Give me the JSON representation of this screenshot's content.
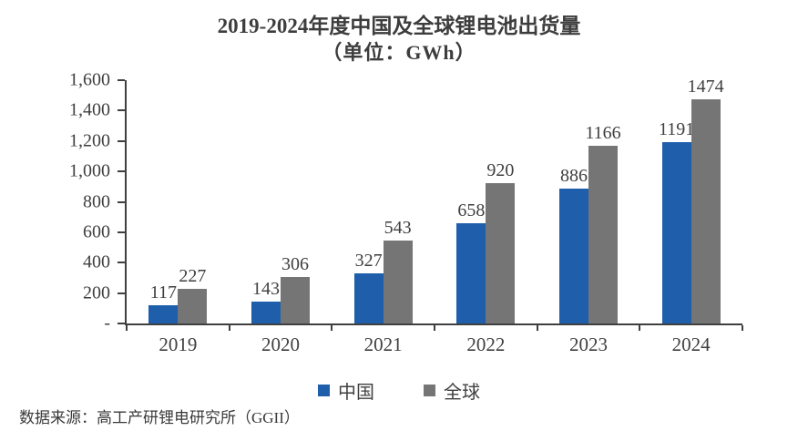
{
  "title": {
    "line1": "2019-2024年度中国及全球锂电池出货量",
    "line2": "（单位：GWh）"
  },
  "legend": {
    "china": "中国",
    "global": "全球"
  },
  "source": "数据来源：高工产研锂电研究所（GGII）",
  "colors": {
    "china": "#1e5eab",
    "global": "#757575",
    "axis": "#3f3f3f",
    "text": "#3f3f3f"
  },
  "chart_data": {
    "type": "bar",
    "categories": [
      "2019",
      "2020",
      "2021",
      "2022",
      "2023",
      "2024"
    ],
    "series": [
      {
        "name": "中国",
        "values": [
          117,
          143,
          327,
          658,
          886,
          1191
        ]
      },
      {
        "name": "全球",
        "values": [
          227,
          306,
          543,
          920,
          1166,
          1474
        ]
      }
    ],
    "title": "2019-2024年度中国及全球锂电池出货量（单位：GWh）",
    "xlabel": "",
    "ylabel": "GWh",
    "ylim": [
      0,
      1600
    ],
    "ytick_step": 200,
    "ytick_labels": [
      "-",
      "200",
      "400",
      "600",
      "800",
      "1,000",
      "1,200",
      "1,400",
      "1,600"
    ],
    "grid": false,
    "legend_position": "bottom"
  }
}
